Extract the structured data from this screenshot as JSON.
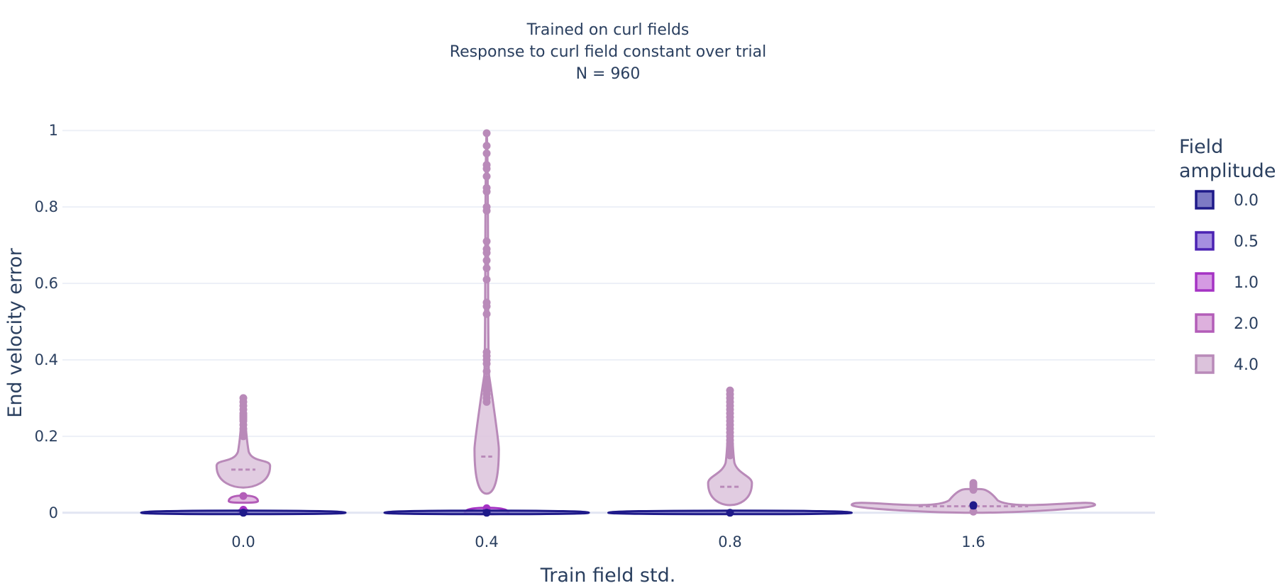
{
  "chart_data": {
    "type": "violin",
    "title_lines": [
      "Trained on curl fields",
      "Response to curl field constant over trial",
      "N = 960"
    ],
    "xlabel": "Train field std.",
    "ylabel": "End velocity error",
    "categories": [
      "0.0",
      "0.4",
      "0.8",
      "1.6"
    ],
    "ylim": [
      -0.03,
      1.03
    ],
    "yticks": [
      0,
      0.2,
      0.4,
      0.6,
      0.8,
      1
    ],
    "ytick_labels": [
      "0",
      "0.2",
      "0.4",
      "0.6",
      "0.8",
      "1"
    ],
    "grid": true,
    "legend_title": "Field\namplitude",
    "legend_position": "right",
    "series": [
      {
        "name": "0.0",
        "color": "#1f1a8a",
        "fill": "#7d7ac4"
      },
      {
        "name": "0.5",
        "color": "#4b22b3",
        "fill": "#a58fe0"
      },
      {
        "name": "1.0",
        "color": "#a533c4",
        "fill": "#d59ae3"
      },
      {
        "name": "2.0",
        "color": "#b35db8",
        "fill": "#ddb0dd"
      },
      {
        "name": "4.0",
        "color": "#b98ab9",
        "fill": "#dcc3dc"
      }
    ],
    "violins": [
      {
        "category": "0.0",
        "series": "0.0",
        "min": 0.0,
        "max": 0.002,
        "mean": 0.0005,
        "halfwidth": 0.42,
        "outliers": [
          0.0
        ]
      },
      {
        "category": "0.0",
        "series": "1.0",
        "min": 0.003,
        "max": 0.009,
        "mean": 0.005,
        "halfwidth": 0.02,
        "outliers": [
          0.008
        ]
      },
      {
        "category": "0.0",
        "series": "2.0",
        "min": 0.03,
        "max": 0.045,
        "mean": 0.035,
        "halfwidth": 0.06,
        "outliers": [
          0.044
        ]
      },
      {
        "category": "0.0",
        "series": "4.0",
        "min": 0.066,
        "max": 0.3,
        "mean": 0.113,
        "halfwidth": 0.11,
        "outliers": [
          0.2,
          0.21,
          0.22,
          0.23,
          0.24,
          0.245,
          0.25,
          0.255,
          0.26,
          0.27,
          0.28,
          0.29,
          0.3
        ]
      },
      {
        "category": "0.4",
        "series": "0.0",
        "min": 0.0,
        "max": 0.002,
        "mean": 0.0005,
        "halfwidth": 0.42,
        "outliers": [
          0.0
        ]
      },
      {
        "category": "0.4",
        "series": "1.0",
        "min": 0.0,
        "max": 0.013,
        "mean": 0.004,
        "halfwidth": 0.09,
        "outliers": [
          0.012
        ]
      },
      {
        "category": "0.4",
        "series": "4.0",
        "min": 0.05,
        "max": 0.993,
        "mean": 0.147,
        "halfwidth": 0.05,
        "outliers": [
          0.29,
          0.3,
          0.31,
          0.32,
          0.33,
          0.34,
          0.35,
          0.37,
          0.39,
          0.4,
          0.41,
          0.42,
          0.52,
          0.54,
          0.55,
          0.61,
          0.64,
          0.66,
          0.68,
          0.69,
          0.71,
          0.79,
          0.8,
          0.84,
          0.85,
          0.88,
          0.9,
          0.91,
          0.94,
          0.96,
          0.993
        ]
      },
      {
        "category": "0.8",
        "series": "0.0",
        "min": 0.0,
        "max": 0.002,
        "mean": 0.0005,
        "halfwidth": 0.5,
        "outliers": [
          0.0
        ]
      },
      {
        "category": "0.8",
        "series": "4.0",
        "min": 0.02,
        "max": 0.32,
        "mean": 0.068,
        "halfwidth": 0.09,
        "outliers": [
          0.15,
          0.16,
          0.17,
          0.18,
          0.19,
          0.2,
          0.21,
          0.22,
          0.23,
          0.24,
          0.25,
          0.26,
          0.27,
          0.28,
          0.29,
          0.3,
          0.31,
          0.32
        ]
      },
      {
        "category": "1.6",
        "series": "0.0",
        "min": 0.015,
        "max": 0.022,
        "mean": 0.02,
        "halfwidth": 0.01,
        "outliers": [
          0.02
        ]
      },
      {
        "category": "1.6",
        "series": "4.0",
        "min": 0.0,
        "max": 0.078,
        "mean": 0.017,
        "halfwidth": 0.5,
        "outliers": [
          0.06,
          0.065,
          0.07,
          0.075,
          0.078,
          0.003
        ]
      }
    ]
  }
}
